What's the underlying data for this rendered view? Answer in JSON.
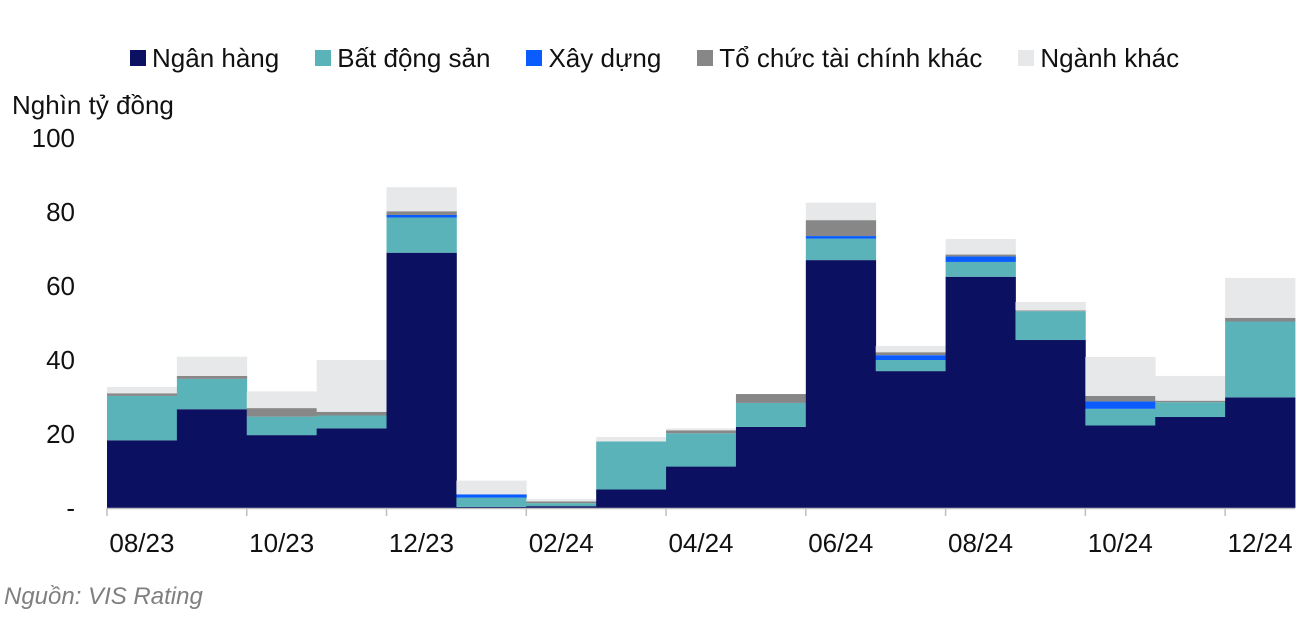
{
  "chart_data": {
    "type": "bar",
    "stacked": true,
    "ylabel": "Nghìn tỷ đồng",
    "ylim": [
      0,
      100
    ],
    "yticks": [
      "-",
      "20",
      "40",
      "60",
      "80",
      "100"
    ],
    "categories": [
      "08/23",
      "09/23",
      "10/23",
      "11/23",
      "12/23",
      "01/24",
      "02/24",
      "03/24",
      "04/24",
      "05/24",
      "06/24",
      "07/24",
      "08/24",
      "09/24",
      "10/24",
      "11/24",
      "12/24"
    ],
    "xtick_labels": [
      "08/23",
      "",
      "10/23",
      "",
      "12/23",
      "",
      "02/24",
      "",
      "04/24",
      "",
      "06/24",
      "",
      "08/24",
      "",
      "10/24",
      "",
      "12/24"
    ],
    "legend_position": "top",
    "series": [
      {
        "name": "Ngân hàng",
        "color": "#0b1160",
        "values": [
          18.3,
          26.7,
          19.7,
          21.5,
          69.0,
          0.3,
          0.5,
          5.0,
          11.2,
          21.9,
          67.0,
          37.0,
          62.5,
          45.4,
          22.3,
          24.6,
          29.9
        ]
      },
      {
        "name": "Bất động sản",
        "color": "#5bb3ba",
        "values": [
          12.0,
          8.2,
          5.0,
          3.5,
          9.5,
          2.5,
          0.8,
          13.0,
          9.0,
          6.5,
          5.8,
          3.0,
          4.0,
          7.8,
          4.5,
          4.0,
          20.5
        ]
      },
      {
        "name": "Xây dựng",
        "color": "#0a5cff",
        "values": [
          0,
          0,
          0,
          0,
          0.7,
          0.9,
          0,
          0,
          0,
          0,
          0.7,
          1.3,
          1.5,
          0,
          2.0,
          0,
          0
        ]
      },
      {
        "name": "Tổ chức tài chính khác",
        "color": "#878787",
        "values": [
          0.7,
          0.8,
          2.3,
          1.0,
          1.0,
          0,
          0.5,
          0,
          0.8,
          2.4,
          4.3,
          0.8,
          0.5,
          0.2,
          1.5,
          0.4,
          1.0
        ]
      },
      {
        "name": "Ngành khác",
        "color": "#e7e8ea",
        "values": [
          1.7,
          5.2,
          4.5,
          14.0,
          6.5,
          3.7,
          0.6,
          1.2,
          0.5,
          0,
          4.7,
          1.7,
          4.2,
          2.3,
          10.5,
          6.7,
          10.8
        ]
      }
    ]
  },
  "source": "Nguồn: VIS Rating"
}
